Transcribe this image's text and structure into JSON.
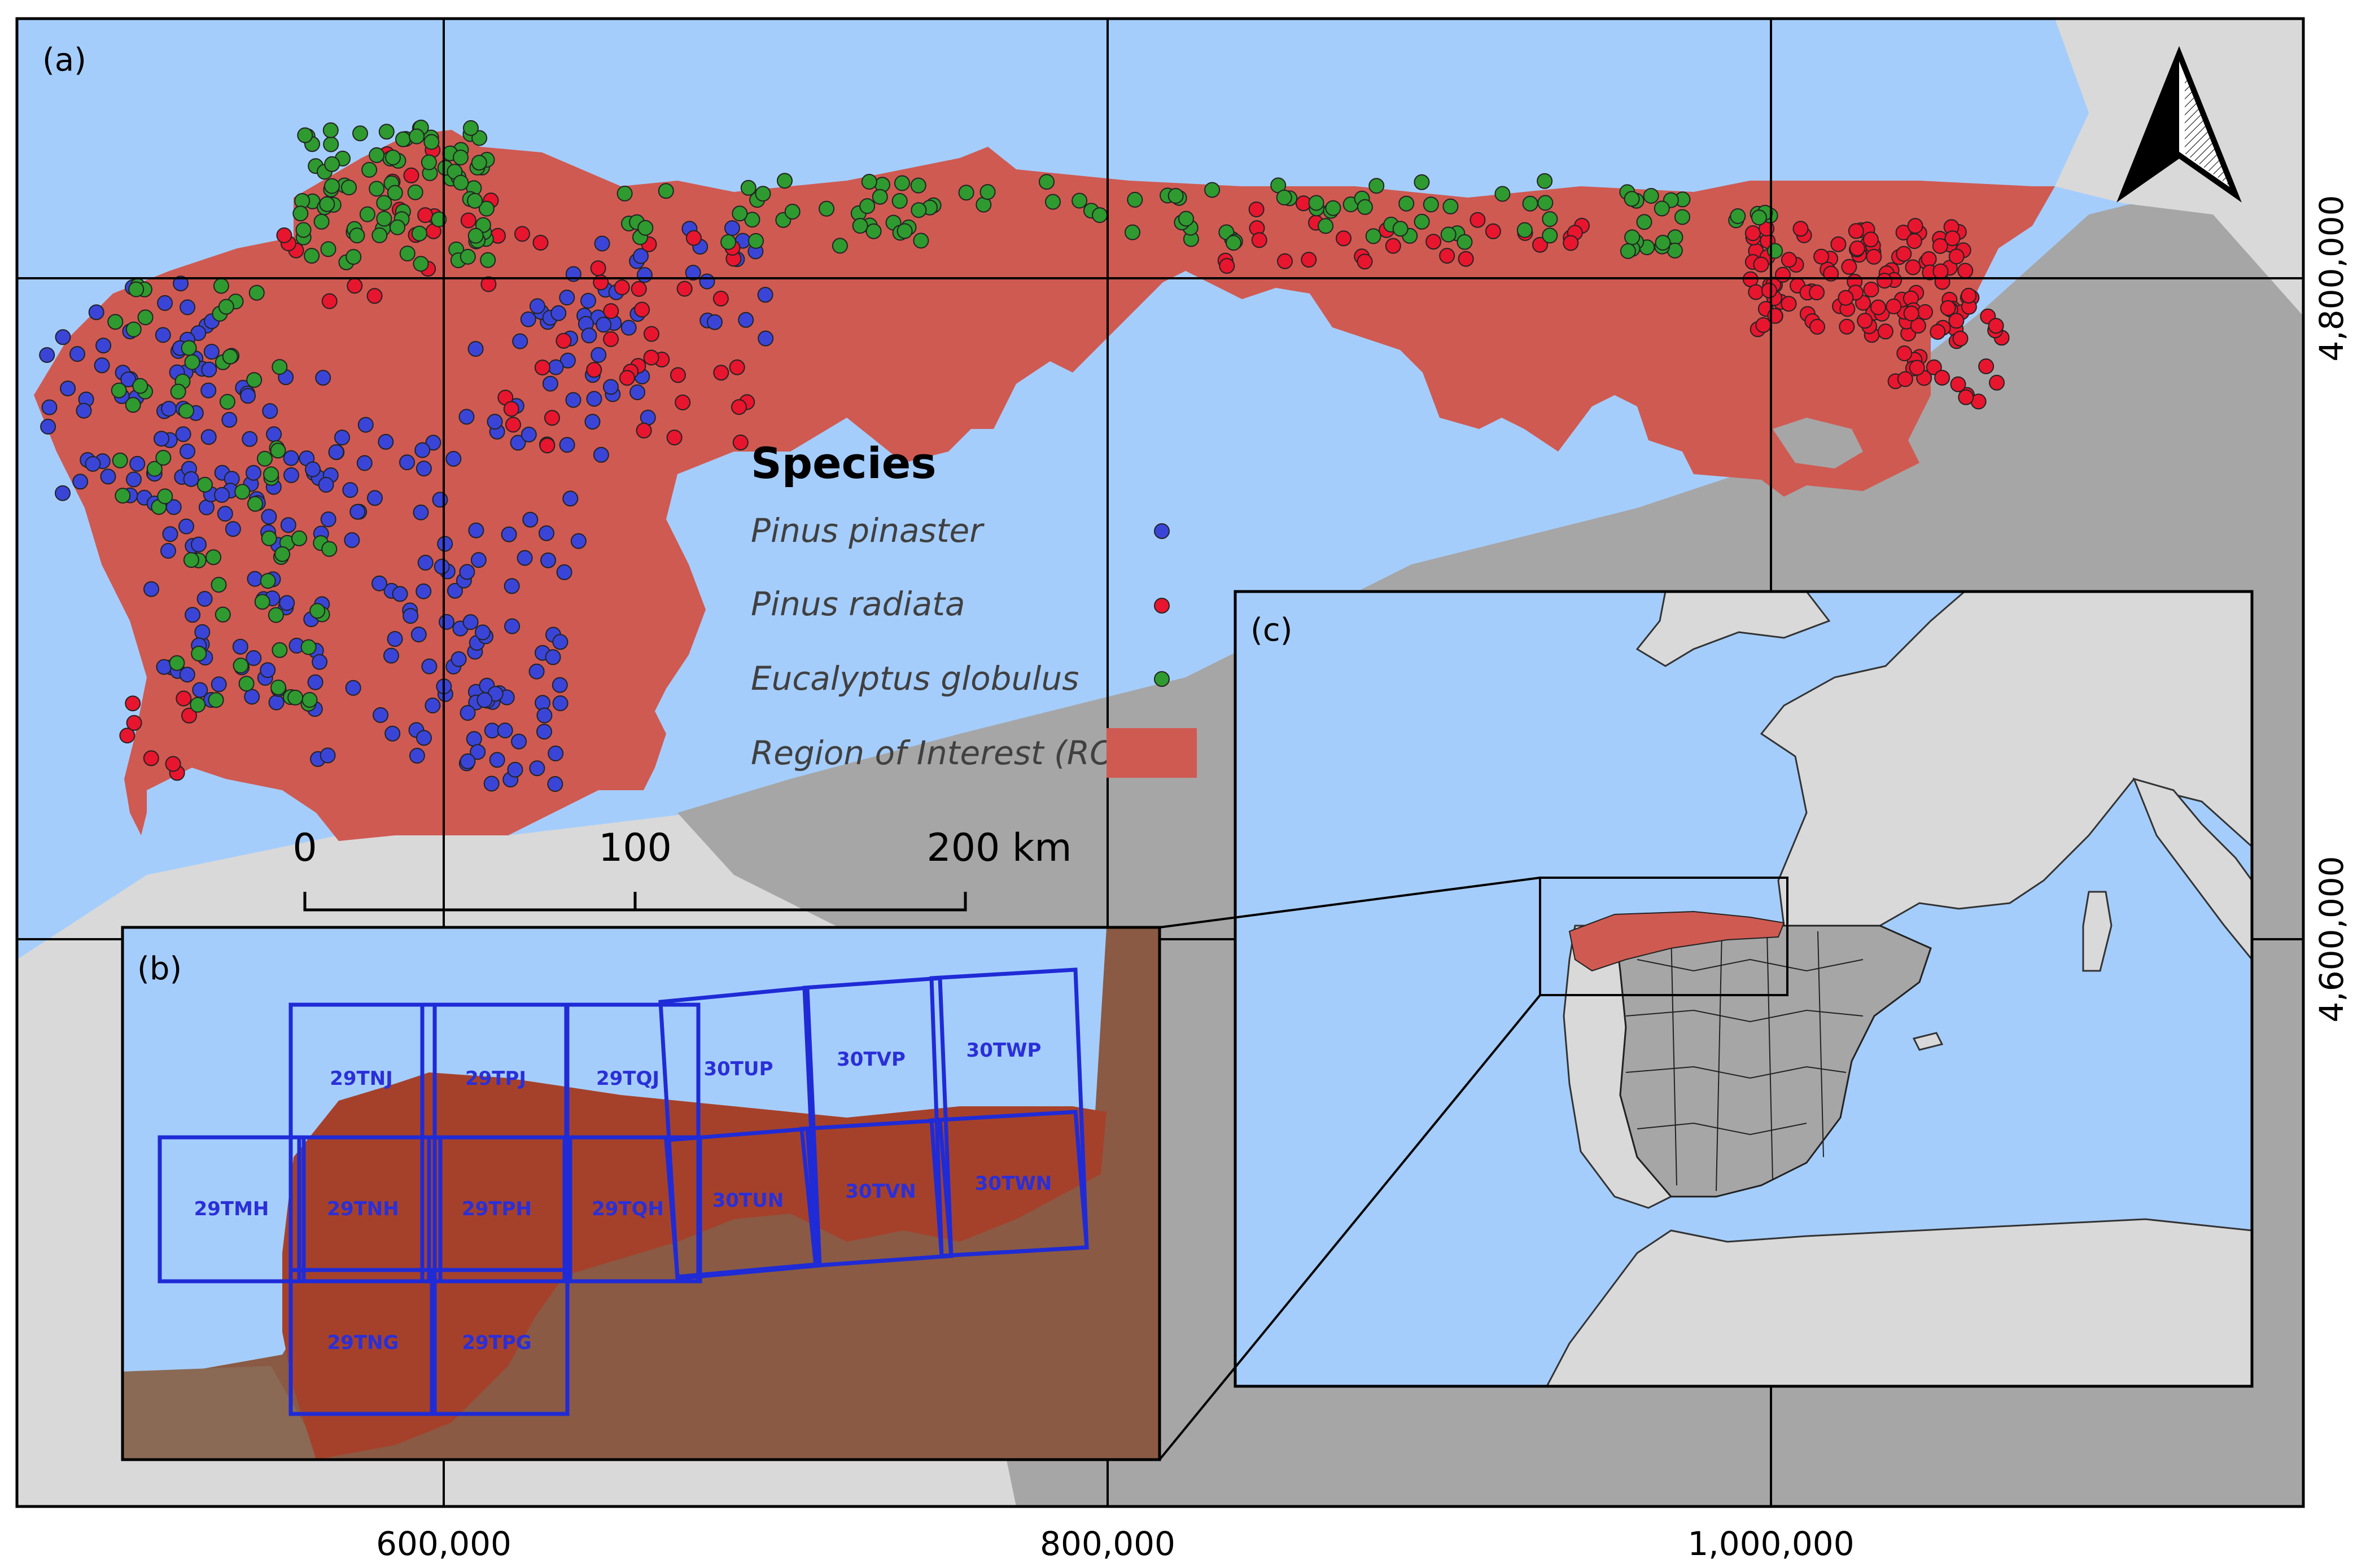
{
  "panels": {
    "a": "(a)",
    "b": "(b)",
    "c": "(c)"
  },
  "legend": {
    "title": "Species",
    "items": [
      {
        "label": "Pinus pinaster",
        "color": "#3a45d8",
        "symbol": "point"
      },
      {
        "label": "Pinus radiata",
        "color": "#e8152e",
        "symbol": "point"
      },
      {
        "label": "Eucalyptus globulus",
        "color": "#2f9a2f",
        "symbol": "point"
      },
      {
        "label": "Region of Interest (ROI)",
        "color": "#cf5a52",
        "symbol": "patch"
      }
    ]
  },
  "scale_bar": {
    "labels": [
      "0",
      "100",
      "200 km"
    ]
  },
  "axes": {
    "x_ticks": [
      "600,000",
      "800,000",
      "1,000,000"
    ],
    "y_ticks": [
      "4,800,000",
      "4,600,000"
    ]
  },
  "north_arrow": "north-arrow-icon",
  "tiles": [
    "29TNJ",
    "29TPJ",
    "29TQJ",
    "30TUP",
    "30TVP",
    "30TWP",
    "29TMH",
    "29TNH",
    "29TPH",
    "29TQH",
    "30TUN",
    "30TVN",
    "30TWN",
    "29TNG",
    "29TPG"
  ],
  "colors": {
    "sea": "#a5cdfc",
    "land": "#d9d9d9",
    "spain_grey": "#a6a6a6",
    "roi": "#cf5a52",
    "inset_land": "#8a5a44",
    "inset_roi": "#a5412b",
    "tile_outline": "#1f2bd6"
  }
}
